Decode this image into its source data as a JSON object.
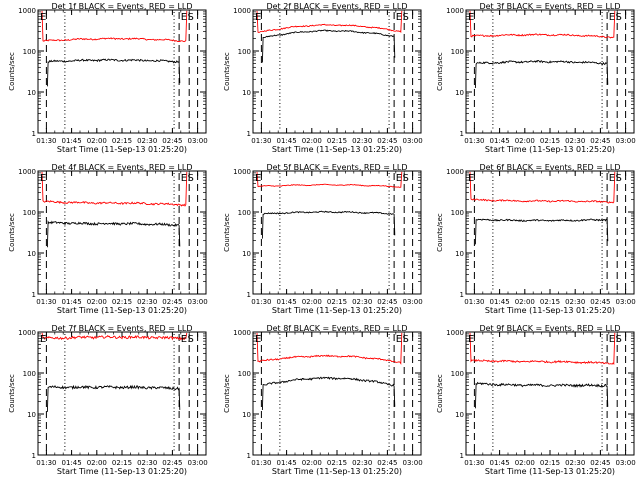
{
  "chart_data": [
    {
      "type": "line",
      "title": "Det 1f BLACK = Events, RED = LLD",
      "xlabel": "Start Time (11-Sep-13 01:25:20)",
      "ylabel": "Counts/sec",
      "yscale": "log",
      "ylim": [
        1,
        1000
      ],
      "xlim": [
        "01:25",
        "03:05"
      ],
      "x_ticks": [
        "01:30",
        "01:45",
        "02:00",
        "02:15",
        "02:30",
        "02:45",
        "03:00"
      ],
      "y_ticks": [
        "1",
        "10",
        "100",
        "1000"
      ],
      "markers": [
        {
          "label": "E",
          "time": "01:25"
        },
        {
          "label": "E",
          "time": "02:50"
        },
        {
          "label": "S",
          "time": "02:54"
        }
      ],
      "dashed_lines": [
        "01:30",
        "02:49",
        "02:55",
        "03:00"
      ],
      "dotted_lines": [
        "01:41",
        "02:46"
      ],
      "series": [
        {
          "color": "#ff0000",
          "start": "01:28",
          "end": "02:53",
          "level_start": 175,
          "level_mid": 200,
          "level_end": 175,
          "spike_start": 950,
          "spike_end": 950,
          "noise": 0.04
        },
        {
          "color": "#000000",
          "start": "01:31",
          "end": "02:49",
          "level_start": 55,
          "level_mid": 60,
          "level_end": 55,
          "spike_start": 0,
          "spike_end": 0,
          "noise": 0.05
        }
      ]
    },
    {
      "type": "line",
      "title": "Det 2f BLACK = Events, RED = LLD",
      "xlabel": "Start Time (11-Sep-13 01:25:20)",
      "ylabel": "Counts/sec",
      "yscale": "log",
      "ylim": [
        1,
        1000
      ],
      "xlim": [
        "01:25",
        "03:05"
      ],
      "x_ticks": [
        "01:30",
        "01:45",
        "02:00",
        "02:15",
        "02:30",
        "02:45",
        "03:00"
      ],
      "y_ticks": [
        "1",
        "10",
        "100",
        "1000"
      ],
      "markers": [
        {
          "label": "E",
          "time": "01:25"
        },
        {
          "label": "E",
          "time": "02:50"
        },
        {
          "label": "S",
          "time": "02:54"
        }
      ],
      "dashed_lines": [
        "01:30",
        "02:49",
        "02:55",
        "03:00"
      ],
      "dotted_lines": [
        "01:41",
        "02:46"
      ],
      "series": [
        {
          "color": "#ff0000",
          "start": "01:28",
          "end": "02:53",
          "level_start": 280,
          "level_mid": 430,
          "level_end": 300,
          "spike_start": 950,
          "spike_end": 950,
          "noise": 0.03
        },
        {
          "color": "#000000",
          "start": "01:31",
          "end": "02:49",
          "level_start": 210,
          "level_mid": 310,
          "level_end": 230,
          "spike_start": 0,
          "spike_end": 0,
          "noise": 0.03
        }
      ]
    },
    {
      "type": "line",
      "title": "Det 3f BLACK = Events, RED = LLD",
      "xlabel": "Start Time (11-Sep-13 01:25:20)",
      "ylabel": "Counts/sec",
      "yscale": "log",
      "ylim": [
        1,
        1000
      ],
      "xlim": [
        "01:25",
        "03:05"
      ],
      "x_ticks": [
        "01:30",
        "01:45",
        "02:00",
        "02:15",
        "02:30",
        "02:45",
        "03:00"
      ],
      "y_ticks": [
        "1",
        "10",
        "100",
        "1000"
      ],
      "markers": [
        {
          "label": "E",
          "time": "01:25"
        },
        {
          "label": "E",
          "time": "02:50"
        },
        {
          "label": "S",
          "time": "02:54"
        }
      ],
      "dashed_lines": [
        "01:30",
        "02:49",
        "02:55",
        "03:00"
      ],
      "dotted_lines": [
        "01:41",
        "02:46"
      ],
      "series": [
        {
          "color": "#ff0000",
          "start": "01:28",
          "end": "02:53",
          "level_start": 230,
          "level_mid": 250,
          "level_end": 215,
          "spike_start": 950,
          "spike_end": 950,
          "noise": 0.04
        },
        {
          "color": "#000000",
          "start": "01:31",
          "end": "02:49",
          "level_start": 50,
          "level_mid": 55,
          "level_end": 50,
          "spike_start": 0,
          "spike_end": 0,
          "noise": 0.05
        }
      ]
    },
    {
      "type": "line",
      "title": "Det 4f BLACK = Events, RED = LLD",
      "xlabel": "Start Time (11-Sep-13 01:25:20)",
      "ylabel": "Counts/sec",
      "yscale": "log",
      "ylim": [
        1,
        1000
      ],
      "xlim": [
        "01:25",
        "03:05"
      ],
      "x_ticks": [
        "01:30",
        "01:45",
        "02:00",
        "02:15",
        "02:30",
        "02:45",
        "03:00"
      ],
      "y_ticks": [
        "1",
        "10",
        "100",
        "1000"
      ],
      "markers": [
        {
          "label": "E",
          "time": "01:25"
        },
        {
          "label": "E",
          "time": "02:50"
        },
        {
          "label": "S",
          "time": "02:54"
        }
      ],
      "dashed_lines": [
        "01:30",
        "02:49",
        "02:55",
        "03:00"
      ],
      "dotted_lines": [
        "01:41",
        "02:46"
      ],
      "series": [
        {
          "color": "#ff0000",
          "start": "01:28",
          "end": "02:53",
          "level_start": 180,
          "level_mid": 165,
          "level_end": 150,
          "spike_start": 950,
          "spike_end": 950,
          "noise": 0.05
        },
        {
          "color": "#000000",
          "start": "01:31",
          "end": "02:49",
          "level_start": 55,
          "level_mid": 52,
          "level_end": 48,
          "spike_start": 0,
          "spike_end": 0,
          "noise": 0.06
        }
      ]
    },
    {
      "type": "line",
      "title": "Det 5f BLACK = Events, RED = LLD",
      "xlabel": "Start Time (11-Sep-13 01:25:20)",
      "ylabel": "Counts/sec",
      "yscale": "log",
      "ylim": [
        1,
        1000
      ],
      "xlim": [
        "01:25",
        "03:05"
      ],
      "x_ticks": [
        "01:30",
        "01:45",
        "02:00",
        "02:15",
        "02:30",
        "02:45",
        "03:00"
      ],
      "y_ticks": [
        "1",
        "10",
        "100",
        "1000"
      ],
      "markers": [
        {
          "label": "E",
          "time": "01:25"
        },
        {
          "label": "E",
          "time": "02:50"
        },
        {
          "label": "S",
          "time": "02:54"
        }
      ],
      "dashed_lines": [
        "01:30",
        "02:49",
        "02:55",
        "03:00"
      ],
      "dotted_lines": [
        "01:41",
        "02:46"
      ],
      "series": [
        {
          "color": "#ff0000",
          "start": "01:28",
          "end": "02:53",
          "level_start": 420,
          "level_mid": 460,
          "level_end": 410,
          "spike_start": 950,
          "spike_end": 950,
          "noise": 0.02
        },
        {
          "color": "#000000",
          "start": "01:31",
          "end": "02:49",
          "level_start": 90,
          "level_mid": 100,
          "level_end": 90,
          "spike_start": 0,
          "spike_end": 0,
          "noise": 0.03
        }
      ]
    },
    {
      "type": "line",
      "title": "Det 6f BLACK = Events, RED = LLD",
      "xlabel": "Start Time (11-Sep-13 01:25:20)",
      "ylabel": "Counts/sec",
      "yscale": "log",
      "ylim": [
        1,
        1000
      ],
      "xlim": [
        "01:25",
        "03:05"
      ],
      "x_ticks": [
        "01:30",
        "01:45",
        "02:00",
        "02:15",
        "02:30",
        "02:45",
        "03:00"
      ],
      "y_ticks": [
        "1",
        "10",
        "100",
        "1000"
      ],
      "markers": [
        {
          "label": "E",
          "time": "01:25"
        },
        {
          "label": "E",
          "time": "02:50"
        },
        {
          "label": "S",
          "time": "02:54"
        }
      ],
      "dashed_lines": [
        "01:30",
        "02:49",
        "02:55",
        "03:00"
      ],
      "dotted_lines": [
        "01:41",
        "02:46"
      ],
      "series": [
        {
          "color": "#ff0000",
          "start": "01:28",
          "end": "02:53",
          "level_start": 200,
          "level_mid": 185,
          "level_end": 175,
          "spike_start": 950,
          "spike_end": 950,
          "noise": 0.04
        },
        {
          "color": "#000000",
          "start": "01:31",
          "end": "02:49",
          "level_start": 65,
          "level_mid": 62,
          "level_end": 65,
          "spike_start": 0,
          "spike_end": 0,
          "noise": 0.04
        }
      ]
    },
    {
      "type": "line",
      "title": "Det 7f BLACK = Events, RED = LLD",
      "xlabel": "Start Time (11-Sep-13 01:25:20)",
      "ylabel": "Counts/sec",
      "yscale": "log",
      "ylim": [
        1,
        1000
      ],
      "xlim": [
        "01:25",
        "03:05"
      ],
      "x_ticks": [
        "01:30",
        "01:45",
        "02:00",
        "02:15",
        "02:30",
        "02:45",
        "03:00"
      ],
      "y_ticks": [
        "1",
        "10",
        "100",
        "1000"
      ],
      "markers": [
        {
          "label": "E",
          "time": "01:25"
        },
        {
          "label": "E",
          "time": "02:50"
        },
        {
          "label": "S",
          "time": "02:54"
        }
      ],
      "dashed_lines": [
        "01:30",
        "02:49",
        "02:55",
        "03:00"
      ],
      "dotted_lines": [
        "01:41",
        "02:46"
      ],
      "series": [
        {
          "color": "#ff0000",
          "start": "01:28",
          "end": "02:53",
          "level_start": 700,
          "level_mid": 750,
          "level_end": 700,
          "spike_start": 950,
          "spike_end": 950,
          "noise": 0.07
        },
        {
          "color": "#000000",
          "start": "01:31",
          "end": "02:49",
          "level_start": 45,
          "level_mid": 45,
          "level_end": 42,
          "spike_start": 0,
          "spike_end": 0,
          "noise": 0.07
        }
      ]
    },
    {
      "type": "line",
      "title": "Det 8f BLACK = Events, RED = LLD",
      "xlabel": "Start Time (11-Sep-13 01:25:20)",
      "ylabel": "Counts/sec",
      "yscale": "log",
      "ylim": [
        1,
        1000
      ],
      "xlim": [
        "01:25",
        "03:05"
      ],
      "x_ticks": [
        "01:30",
        "01:45",
        "02:00",
        "02:15",
        "02:30",
        "02:45",
        "03:00"
      ],
      "y_ticks": [
        "1",
        "10",
        "100",
        "1000"
      ],
      "markers": [
        {
          "label": "E",
          "time": "01:25"
        },
        {
          "label": "E",
          "time": "02:50"
        },
        {
          "label": "S",
          "time": "02:54"
        }
      ],
      "dashed_lines": [
        "01:30",
        "02:49",
        "02:55",
        "03:00"
      ],
      "dotted_lines": [
        "01:41",
        "02:46"
      ],
      "series": [
        {
          "color": "#ff0000",
          "start": "01:28",
          "end": "02:53",
          "level_start": 190,
          "level_mid": 260,
          "level_end": 180,
          "spike_start": 950,
          "spike_end": 950,
          "noise": 0.04
        },
        {
          "color": "#000000",
          "start": "01:31",
          "end": "02:49",
          "level_start": 50,
          "level_mid": 75,
          "level_end": 50,
          "spike_start": 0,
          "spike_end": 0,
          "noise": 0.05
        }
      ]
    },
    {
      "type": "line",
      "title": "Det 9f BLACK = Events, RED = LLD",
      "xlabel": "Start Time (11-Sep-13 01:25:20)",
      "ylabel": "Counts/sec",
      "yscale": "log",
      "ylim": [
        1,
        1000
      ],
      "xlim": [
        "01:25",
        "03:05"
      ],
      "x_ticks": [
        "01:30",
        "01:45",
        "02:00",
        "02:15",
        "02:30",
        "02:45",
        "03:00"
      ],
      "y_ticks": [
        "1",
        "10",
        "100",
        "1000"
      ],
      "markers": [
        {
          "label": "E",
          "time": "01:25"
        },
        {
          "label": "E",
          "time": "02:50"
        },
        {
          "label": "S",
          "time": "02:54"
        }
      ],
      "dashed_lines": [
        "01:30",
        "02:49",
        "02:55",
        "03:00"
      ],
      "dotted_lines": [
        "01:41",
        "02:46"
      ],
      "series": [
        {
          "color": "#ff0000",
          "start": "01:28",
          "end": "02:53",
          "level_start": 200,
          "level_mid": 190,
          "level_end": 170,
          "spike_start": 950,
          "spike_end": 950,
          "noise": 0.05
        },
        {
          "color": "#000000",
          "start": "01:31",
          "end": "02:49",
          "level_start": 55,
          "level_mid": 50,
          "level_end": 50,
          "spike_start": 0,
          "spike_end": 0,
          "noise": 0.06
        }
      ]
    }
  ]
}
